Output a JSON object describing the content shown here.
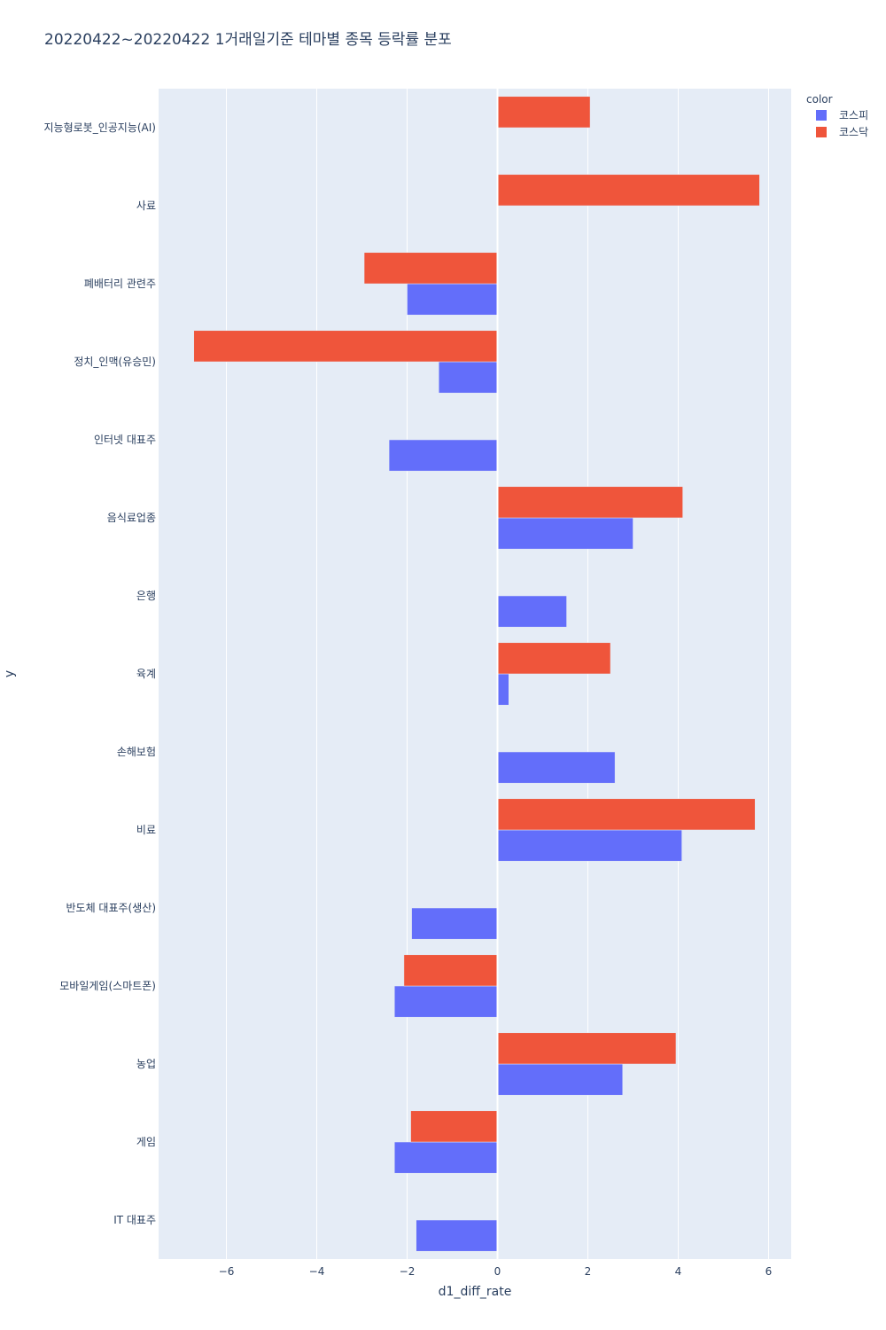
{
  "chart_data": {
    "type": "bar",
    "orientation": "horizontal",
    "title": "20220422~20220422 1거래일기준 테마별 종목 등락률 분포",
    "xlabel": "d1_diff_rate",
    "ylabel": "y",
    "xlim": [
      -7.5,
      6.5
    ],
    "xticks": [
      -6,
      -4,
      -2,
      0,
      2,
      4,
      6
    ],
    "xtick_labels": [
      "−6",
      "−4",
      "−2",
      "0",
      "2",
      "4",
      "6"
    ],
    "categories": [
      "지능형로봇_인공지능(AI)",
      "사료",
      "폐배터리 관련주",
      "정치_인맥(유승민)",
      "인터넷 대표주",
      "음식료업종",
      "은행",
      "육계",
      "손해보험",
      "비료",
      "반도체 대표주(생산)",
      "모바일게임(스마트폰)",
      "농업",
      "게임",
      "IT 대표주"
    ],
    "legend_title": "color",
    "legend_position": "top-right",
    "series": [
      {
        "name": "코스피",
        "color": "#636efa",
        "values": [
          null,
          null,
          -2.0,
          -1.3,
          -2.4,
          3.0,
          1.53,
          0.25,
          2.6,
          4.08,
          -1.9,
          -2.28,
          2.77,
          -2.28,
          -1.8
        ]
      },
      {
        "name": "코스닥",
        "color": "#ef553b",
        "values": [
          2.05,
          5.8,
          -2.95,
          -6.72,
          null,
          4.1,
          null,
          2.5,
          null,
          5.7,
          null,
          -2.07,
          3.95,
          -1.92,
          null
        ]
      }
    ]
  }
}
